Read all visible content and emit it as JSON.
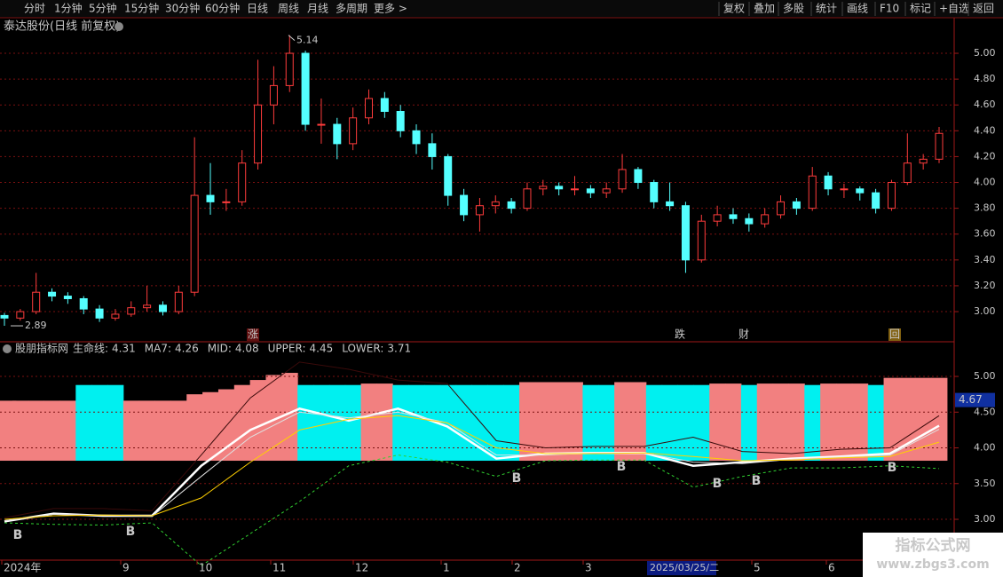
{
  "toolbar": {
    "left": [
      "分时",
      "1分钟",
      "5分钟",
      "15分钟",
      "30分钟",
      "60分钟",
      "日线",
      "周线",
      "月线",
      "多周期",
      "更多 >"
    ],
    "active": "日线",
    "right": [
      "复权",
      "叠加",
      "多股",
      "统计",
      "画线",
      "F10",
      "标记",
      "+自选",
      "返回"
    ]
  },
  "stock_title": "泰达股份(日线 前复权)",
  "indicator_title": "股朋指标网",
  "events": [
    {
      "text": "涨",
      "color": "#ff4040"
    },
    {
      "text": "跌",
      "color": "#40ff40"
    },
    {
      "text": "财",
      "color": "#66aaff"
    },
    {
      "text": "回",
      "color": "#ffcc33"
    }
  ],
  "signals": [
    "B",
    "B",
    "B",
    "B",
    "B",
    "B",
    "B"
  ],
  "time_axis": {
    "labels": [
      "2024年",
      "9",
      "10",
      "11",
      "12",
      "1",
      "2",
      "3",
      "5",
      "6"
    ],
    "cursor": "2025/03/25/二"
  },
  "price_tag": 4.67,
  "watermark": {
    "title": "指标公式网",
    "url": "www.zbgs3.com"
  },
  "chart_data": [
    {
      "type": "candlestick",
      "up_color": "#ff3c3c",
      "down_color": "#54ffff",
      "ylim": [
        2.77,
        5.15
      ],
      "yticks": [
        {
          "value": 3,
          "label": "3.00"
        },
        {
          "value": 3.2,
          "label": "3.20"
        },
        {
          "value": 3.4,
          "label": "3.40"
        },
        {
          "value": 3.6,
          "label": "3.60"
        },
        {
          "value": 3.8,
          "label": "3.80"
        },
        {
          "value": 4,
          "label": "4.00"
        },
        {
          "value": 4.2,
          "label": "4.20"
        },
        {
          "value": 4.4,
          "label": "4.40"
        },
        {
          "value": 4.6,
          "label": "4.60"
        },
        {
          "value": 4.8,
          "label": "4.80"
        },
        {
          "value": 5,
          "label": "5.00"
        }
      ],
      "annotations": [
        {
          "value": 5.14,
          "label": "5.14"
        },
        {
          "value": 2.89,
          "label": "2.89"
        }
      ],
      "ohlc": [
        [
          2.97,
          2.99,
          2.89,
          2.95
        ],
        [
          2.95,
          3.02,
          2.93,
          3.0
        ],
        [
          3.0,
          3.3,
          2.98,
          3.15
        ],
        [
          3.15,
          3.18,
          3.08,
          3.12
        ],
        [
          3.12,
          3.15,
          3.06,
          3.1
        ],
        [
          3.1,
          3.12,
          2.98,
          3.02
        ],
        [
          3.02,
          3.05,
          2.92,
          2.95
        ],
        [
          2.95,
          3.02,
          2.93,
          2.98
        ],
        [
          2.98,
          3.08,
          2.96,
          3.03
        ],
        [
          3.03,
          3.2,
          3.0,
          3.05
        ],
        [
          3.05,
          3.08,
          2.97,
          3.0
        ],
        [
          3.0,
          3.2,
          2.98,
          3.15
        ],
        [
          3.15,
          4.35,
          3.12,
          3.9
        ],
        [
          3.9,
          4.15,
          3.75,
          3.85
        ],
        [
          3.85,
          3.95,
          3.78,
          3.85
        ],
        [
          3.85,
          4.25,
          3.82,
          4.15
        ],
        [
          4.15,
          4.95,
          4.1,
          4.6
        ],
        [
          4.6,
          4.9,
          4.45,
          4.75
        ],
        [
          4.75,
          5.14,
          4.7,
          5.0
        ],
        [
          5.0,
          5.02,
          4.4,
          4.45
        ],
        [
          4.45,
          4.65,
          4.3,
          4.45
        ],
        [
          4.45,
          4.5,
          4.18,
          4.3
        ],
        [
          4.3,
          4.58,
          4.25,
          4.5
        ],
        [
          4.5,
          4.72,
          4.45,
          4.65
        ],
        [
          4.65,
          4.7,
          4.5,
          4.55
        ],
        [
          4.55,
          4.6,
          4.35,
          4.4
        ],
        [
          4.4,
          4.45,
          4.22,
          4.3
        ],
        [
          4.3,
          4.38,
          4.1,
          4.2
        ],
        [
          4.2,
          4.22,
          3.82,
          3.9
        ],
        [
          3.9,
          3.95,
          3.7,
          3.75
        ],
        [
          3.75,
          3.88,
          3.62,
          3.82
        ],
        [
          3.82,
          3.9,
          3.76,
          3.85
        ],
        [
          3.85,
          3.88,
          3.76,
          3.8
        ],
        [
          3.8,
          4.0,
          3.78,
          3.95
        ],
        [
          3.95,
          4.02,
          3.9,
          3.97
        ],
        [
          3.97,
          4.0,
          3.9,
          3.95
        ],
        [
          3.95,
          4.05,
          3.9,
          3.95
        ],
        [
          3.95,
          3.98,
          3.88,
          3.92
        ],
        [
          3.92,
          4.0,
          3.88,
          3.95
        ],
        [
          3.95,
          4.22,
          3.92,
          4.1
        ],
        [
          4.1,
          4.12,
          3.95,
          4.0
        ],
        [
          4.0,
          4.02,
          3.8,
          3.85
        ],
        [
          3.85,
          4.0,
          3.78,
          3.82
        ],
        [
          3.82,
          3.85,
          3.3,
          3.4
        ],
        [
          3.4,
          3.75,
          3.38,
          3.7
        ],
        [
          3.7,
          3.82,
          3.66,
          3.75
        ],
        [
          3.75,
          3.8,
          3.68,
          3.72
        ],
        [
          3.72,
          3.76,
          3.62,
          3.68
        ],
        [
          3.68,
          3.8,
          3.65,
          3.75
        ],
        [
          3.75,
          3.9,
          3.72,
          3.85
        ],
        [
          3.85,
          3.88,
          3.75,
          3.8
        ],
        [
          3.8,
          4.12,
          3.78,
          4.05
        ],
        [
          4.05,
          4.08,
          3.9,
          3.95
        ],
        [
          3.95,
          3.99,
          3.88,
          3.95
        ],
        [
          3.95,
          3.97,
          3.86,
          3.92
        ],
        [
          3.92,
          3.95,
          3.76,
          3.8
        ],
        [
          3.8,
          4.02,
          3.78,
          4.0
        ],
        [
          4.0,
          4.38,
          3.98,
          4.15
        ],
        [
          4.15,
          4.22,
          4.1,
          4.18
        ],
        [
          4.18,
          4.43,
          4.15,
          4.38
        ]
      ]
    },
    {
      "type": "line",
      "ylim": [
        2.43,
        5.3
      ],
      "yticks": [
        {
          "value": 3,
          "label": "3.00"
        },
        {
          "value": 3.5,
          "label": "3.50"
        },
        {
          "value": 4,
          "label": "4.00"
        },
        {
          "value": 4.5,
          "label": "4.50"
        },
        {
          "value": 5,
          "label": "5.00"
        }
      ],
      "columns": {
        "base": 3.82,
        "values": [
          4.66,
          4.66,
          4.66,
          4.66,
          4.66,
          4.88,
          4.88,
          4.88,
          4.66,
          4.66,
          4.66,
          4.66,
          4.75,
          4.78,
          4.82,
          4.88,
          4.95,
          5.02,
          5.05,
          4.88,
          4.88,
          4.88,
          4.88,
          4.9,
          4.9,
          4.88,
          4.88,
          4.88,
          4.88,
          4.88,
          4.88,
          4.88,
          4.88,
          4.92,
          4.92,
          4.92,
          4.92,
          4.88,
          4.88,
          4.92,
          4.92,
          4.88,
          4.88,
          4.88,
          4.88,
          4.9,
          4.9,
          4.88,
          4.9,
          4.9,
          4.9,
          4.88,
          4.9,
          4.9,
          4.9,
          4.88,
          4.98,
          4.98,
          4.98,
          4.98
        ],
        "colors": [
          "#f28080",
          "#f28080",
          "#f28080",
          "#f28080",
          "#f28080",
          "#00f0f0",
          "#00f0f0",
          "#00f0f0",
          "#f28080",
          "#f28080",
          "#f28080",
          "#f28080",
          "#f28080",
          "#f28080",
          "#f28080",
          "#f28080",
          "#f28080",
          "#f28080",
          "#f28080",
          "#00f0f0",
          "#00f0f0",
          "#00f0f0",
          "#00f0f0",
          "#f28080",
          "#f28080",
          "#00f0f0",
          "#00f0f0",
          "#00f0f0",
          "#00f0f0",
          "#00f0f0",
          "#00f0f0",
          "#00f0f0",
          "#00f0f0",
          "#f28080",
          "#f28080",
          "#f28080",
          "#f28080",
          "#00f0f0",
          "#00f0f0",
          "#f28080",
          "#f28080",
          "#00f0f0",
          "#00f0f0",
          "#00f0f0",
          "#00f0f0",
          "#f28080",
          "#f28080",
          "#00f0f0",
          "#f28080",
          "#f28080",
          "#f28080",
          "#00f0f0",
          "#f28080",
          "#f28080",
          "#f28080",
          "#00f0f0",
          "#f28080",
          "#f28080",
          "#f28080",
          "#f28080"
        ]
      },
      "series": [
        {
          "name": "生命线:",
          "last": 4.31,
          "label_color": "#ffff40",
          "color": "#ffffff",
          "width": 2.5,
          "dashed": false,
          "values": [
            2.97,
            3.08,
            3.05,
            3.05,
            3.75,
            4.25,
            4.55,
            4.38,
            4.55,
            4.3,
            3.85,
            3.92,
            3.93,
            3.93,
            3.75,
            3.8,
            3.85,
            3.88,
            3.92,
            4.31
          ]
        },
        {
          "name": "MA7:",
          "last": 4.26,
          "label_color": "#ffffff",
          "color": "#e0e0e0",
          "width": 1,
          "dashed": false,
          "values": [
            2.98,
            3.07,
            3.06,
            3.04,
            3.6,
            4.15,
            4.5,
            4.42,
            4.5,
            4.35,
            3.9,
            3.9,
            3.93,
            3.93,
            3.8,
            3.78,
            3.84,
            3.87,
            3.9,
            4.26
          ]
        },
        {
          "name": "MID:",
          "last": 4.08,
          "label_color": "#ffff40",
          "color": "#ffd000",
          "width": 1,
          "dashed": false,
          "values": [
            3.0,
            3.05,
            3.06,
            3.05,
            3.3,
            3.8,
            4.25,
            4.4,
            4.45,
            4.35,
            4.0,
            3.92,
            3.92,
            3.93,
            3.88,
            3.82,
            3.83,
            3.86,
            3.88,
            4.08
          ]
        },
        {
          "name": "UPPER:",
          "last": 4.45,
          "label_color": "#ff4040",
          "color": "#3a0a0a",
          "width": 1,
          "dashed": false,
          "values": [
            3.02,
            3.15,
            3.15,
            3.12,
            3.9,
            4.7,
            5.2,
            5.1,
            4.95,
            4.9,
            4.1,
            4.0,
            4.02,
            4.02,
            4.15,
            3.95,
            3.92,
            3.98,
            4.0,
            4.45
          ]
        },
        {
          "name": "LOWER:",
          "last": 3.71,
          "label_color": "#40ff40",
          "color": "#30d030",
          "width": 1,
          "dashed": true,
          "values": [
            2.95,
            2.93,
            2.92,
            2.95,
            2.35,
            2.8,
            3.25,
            3.75,
            3.9,
            3.8,
            3.6,
            3.82,
            3.83,
            3.83,
            3.45,
            3.6,
            3.72,
            3.72,
            3.75,
            3.71
          ]
        }
      ]
    }
  ]
}
